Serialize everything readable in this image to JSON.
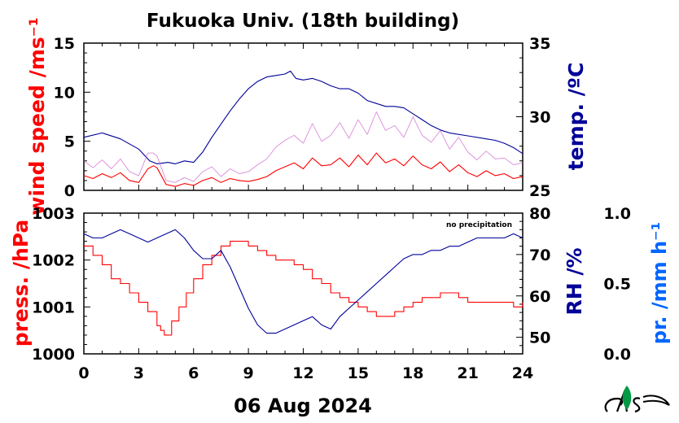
{
  "chart_data": [
    {
      "type": "line",
      "title": "Fukuoka Univ. (18th building)",
      "xlabel": "",
      "x_ticks": [
        0,
        3,
        6,
        9,
        12,
        15,
        18,
        21,
        24
      ],
      "xlim": [
        0,
        24
      ],
      "left_axis": {
        "label": "wind speed /ms⁻¹",
        "ylim": [
          0,
          15
        ],
        "ticks": [
          0,
          5,
          10,
          15
        ],
        "color": "#ff0000"
      },
      "right_axis": {
        "label": "temp. /ºC",
        "ylim": [
          25,
          35
        ],
        "ticks": [
          25,
          30,
          35
        ],
        "color": "#000099"
      },
      "series": [
        {
          "axis": "right",
          "color": "#000099",
          "x": [
            0,
            1,
            2,
            3,
            3.6,
            4,
            4.6,
            5,
            5.5,
            6,
            6.5,
            7,
            7.5,
            8,
            8.5,
            9,
            9.5,
            10,
            10.5,
            11,
            11.3,
            11.6,
            12,
            12.5,
            13,
            13.5,
            14,
            14.5,
            15,
            15.5,
            16,
            16.5,
            17,
            17.5,
            18,
            18.5,
            19,
            19.5,
            20,
            21,
            22,
            22.5,
            23,
            23.5,
            24
          ],
          "y": [
            28.6,
            28.9,
            28.5,
            27.8,
            27.0,
            26.8,
            26.9,
            26.8,
            27.0,
            26.9,
            27.6,
            28.6,
            29.5,
            30.4,
            31.2,
            31.9,
            32.4,
            32.7,
            32.8,
            32.9,
            33.1,
            32.6,
            32.5,
            32.6,
            32.4,
            32.1,
            31.9,
            31.9,
            31.6,
            31.1,
            30.9,
            30.7,
            30.7,
            30.6,
            30.2,
            29.8,
            29.4,
            29.1,
            28.9,
            28.7,
            28.5,
            28.4,
            28.2,
            27.9,
            27.5
          ]
        },
        {
          "axis": "left",
          "color": "#ff0000",
          "x": [
            0,
            0.5,
            1,
            1.5,
            2,
            2.5,
            3,
            3.5,
            3.8,
            4,
            4.5,
            5,
            5.5,
            6,
            6.5,
            7,
            7.5,
            8,
            8.5,
            9,
            9.5,
            10,
            10.5,
            11,
            11.5,
            12,
            12.5,
            13,
            13.5,
            14,
            14.5,
            15,
            15.5,
            16,
            16.5,
            17,
            17.5,
            18,
            18.5,
            19,
            19.5,
            20,
            20.5,
            21,
            21.5,
            22,
            22.5,
            23,
            23.5,
            24
          ],
          "y": [
            1.5,
            1.2,
            1.7,
            1.3,
            1.8,
            1.0,
            0.8,
            2.2,
            2.5,
            2.3,
            0.6,
            0.4,
            0.7,
            0.5,
            1.0,
            1.3,
            0.8,
            1.2,
            1.0,
            0.9,
            1.1,
            1.4,
            2.0,
            2.4,
            2.8,
            2.2,
            3.3,
            2.5,
            2.6,
            3.3,
            2.4,
            3.6,
            2.6,
            3.8,
            2.8,
            3.2,
            2.5,
            3.5,
            2.6,
            2.2,
            2.9,
            1.9,
            2.6,
            1.8,
            1.4,
            2.0,
            1.5,
            1.7,
            1.2,
            1.4
          ]
        },
        {
          "axis": "left",
          "color": "#cc66cc",
          "x": [
            0,
            0.5,
            1,
            1.5,
            2,
            2.5,
            3,
            3.5,
            3.8,
            4,
            4.5,
            5,
            5.5,
            6,
            6.5,
            7,
            7.5,
            8,
            8.5,
            9,
            9.5,
            10,
            10.5,
            11,
            11.5,
            12,
            12.5,
            13,
            13.5,
            14,
            14.5,
            15,
            15.5,
            16,
            16.5,
            17,
            17.5,
            18,
            18.5,
            19,
            19.5,
            20,
            20.5,
            21,
            21.5,
            22,
            22.5,
            23,
            23.5,
            24
          ],
          "y": [
            3.0,
            2.3,
            3.1,
            2.2,
            3.2,
            1.9,
            1.5,
            3.8,
            3.8,
            3.5,
            1.0,
            0.8,
            1.3,
            0.9,
            1.9,
            2.4,
            1.4,
            2.2,
            1.7,
            1.9,
            2.6,
            3.2,
            4.4,
            5.1,
            5.6,
            4.8,
            6.8,
            5.0,
            5.6,
            6.9,
            5.3,
            7.2,
            5.7,
            8.0,
            6.1,
            6.6,
            5.4,
            7.5,
            5.6,
            4.9,
            6.1,
            4.2,
            5.4,
            3.9,
            3.1,
            4.0,
            3.2,
            3.3,
            2.6,
            2.8
          ]
        }
      ]
    },
    {
      "type": "line",
      "xlabel": "06 Aug 2024",
      "x_ticks": [
        0,
        3,
        6,
        9,
        12,
        15,
        18,
        21,
        24
      ],
      "xlim": [
        0,
        24
      ],
      "left_axis": {
        "label": "press. /hPa",
        "ylim": [
          1000,
          1003
        ],
        "ticks": [
          1000,
          1001,
          1002,
          1003
        ],
        "color": "#ff0000"
      },
      "right_axis": {
        "label": "RH /%",
        "ylim": [
          46,
          80
        ],
        "ticks": [
          50,
          60,
          70,
          80
        ],
        "color": "#000099"
      },
      "precip_axis": {
        "label": "pr. /mm h⁻¹",
        "ylim": [
          0.0,
          1.0
        ],
        "ticks": [
          "0.0",
          "0.5",
          "1.0"
        ],
        "color": "#0066ff"
      },
      "annotation": "no precipitation",
      "series": [
        {
          "axis": "left",
          "color": "#ff0000",
          "step": true,
          "x": [
            0,
            0.5,
            1,
            1.5,
            2,
            2.5,
            3,
            3.5,
            4,
            4.2,
            4.4,
            4.8,
            5.2,
            5.6,
            6,
            6.5,
            7,
            7.5,
            8,
            8.5,
            9,
            9.5,
            10,
            10.5,
            11,
            11.5,
            12,
            12.5,
            13,
            13.5,
            14,
            14.5,
            15,
            15.5,
            16,
            16.5,
            17,
            17.5,
            18,
            18.5,
            19,
            19.5,
            20,
            20.5,
            21,
            21.5,
            22,
            22.5,
            23,
            23.5,
            24
          ],
          "y": [
            1002.3,
            1002.1,
            1001.9,
            1001.6,
            1001.5,
            1001.3,
            1001.1,
            1000.9,
            1000.6,
            1000.5,
            1000.4,
            1000.7,
            1001.0,
            1001.3,
            1001.6,
            1001.9,
            1002.1,
            1002.3,
            1002.4,
            1002.4,
            1002.3,
            1002.2,
            1002.1,
            1002.0,
            1002.0,
            1001.9,
            1001.8,
            1001.6,
            1001.5,
            1001.3,
            1001.2,
            1001.1,
            1001.0,
            1000.9,
            1000.8,
            1000.8,
            1000.9,
            1001.0,
            1001.1,
            1001.2,
            1001.2,
            1001.3,
            1001.3,
            1001.2,
            1001.1,
            1001.1,
            1001.1,
            1001.1,
            1001.1,
            1001.0,
            1001.1
          ]
        },
        {
          "axis": "right",
          "color": "#000099",
          "x": [
            0,
            0.5,
            1,
            1.5,
            2,
            2.5,
            3,
            3.5,
            4,
            4.5,
            5,
            5.5,
            6,
            6.5,
            7,
            7.5,
            8,
            8.5,
            9,
            9.5,
            10,
            10.5,
            11,
            11.5,
            12,
            12.5,
            13,
            13.5,
            14,
            14.5,
            15,
            15.5,
            16,
            16.5,
            17,
            17.5,
            18,
            18.5,
            19,
            19.5,
            20,
            20.5,
            21,
            21.5,
            22,
            22.5,
            23,
            23.5,
            24
          ],
          "y": [
            75,
            74,
            74,
            75,
            76,
            75,
            74,
            73,
            74,
            75,
            76,
            74,
            71,
            69,
            69,
            71,
            67,
            62,
            57,
            53,
            51,
            51,
            52,
            53,
            54,
            55,
            53,
            52,
            55,
            57,
            59,
            61,
            63,
            65,
            67,
            69,
            70,
            70,
            71,
            71,
            72,
            72,
            73,
            74,
            74,
            74,
            74,
            75,
            74
          ]
        }
      ]
    }
  ]
}
